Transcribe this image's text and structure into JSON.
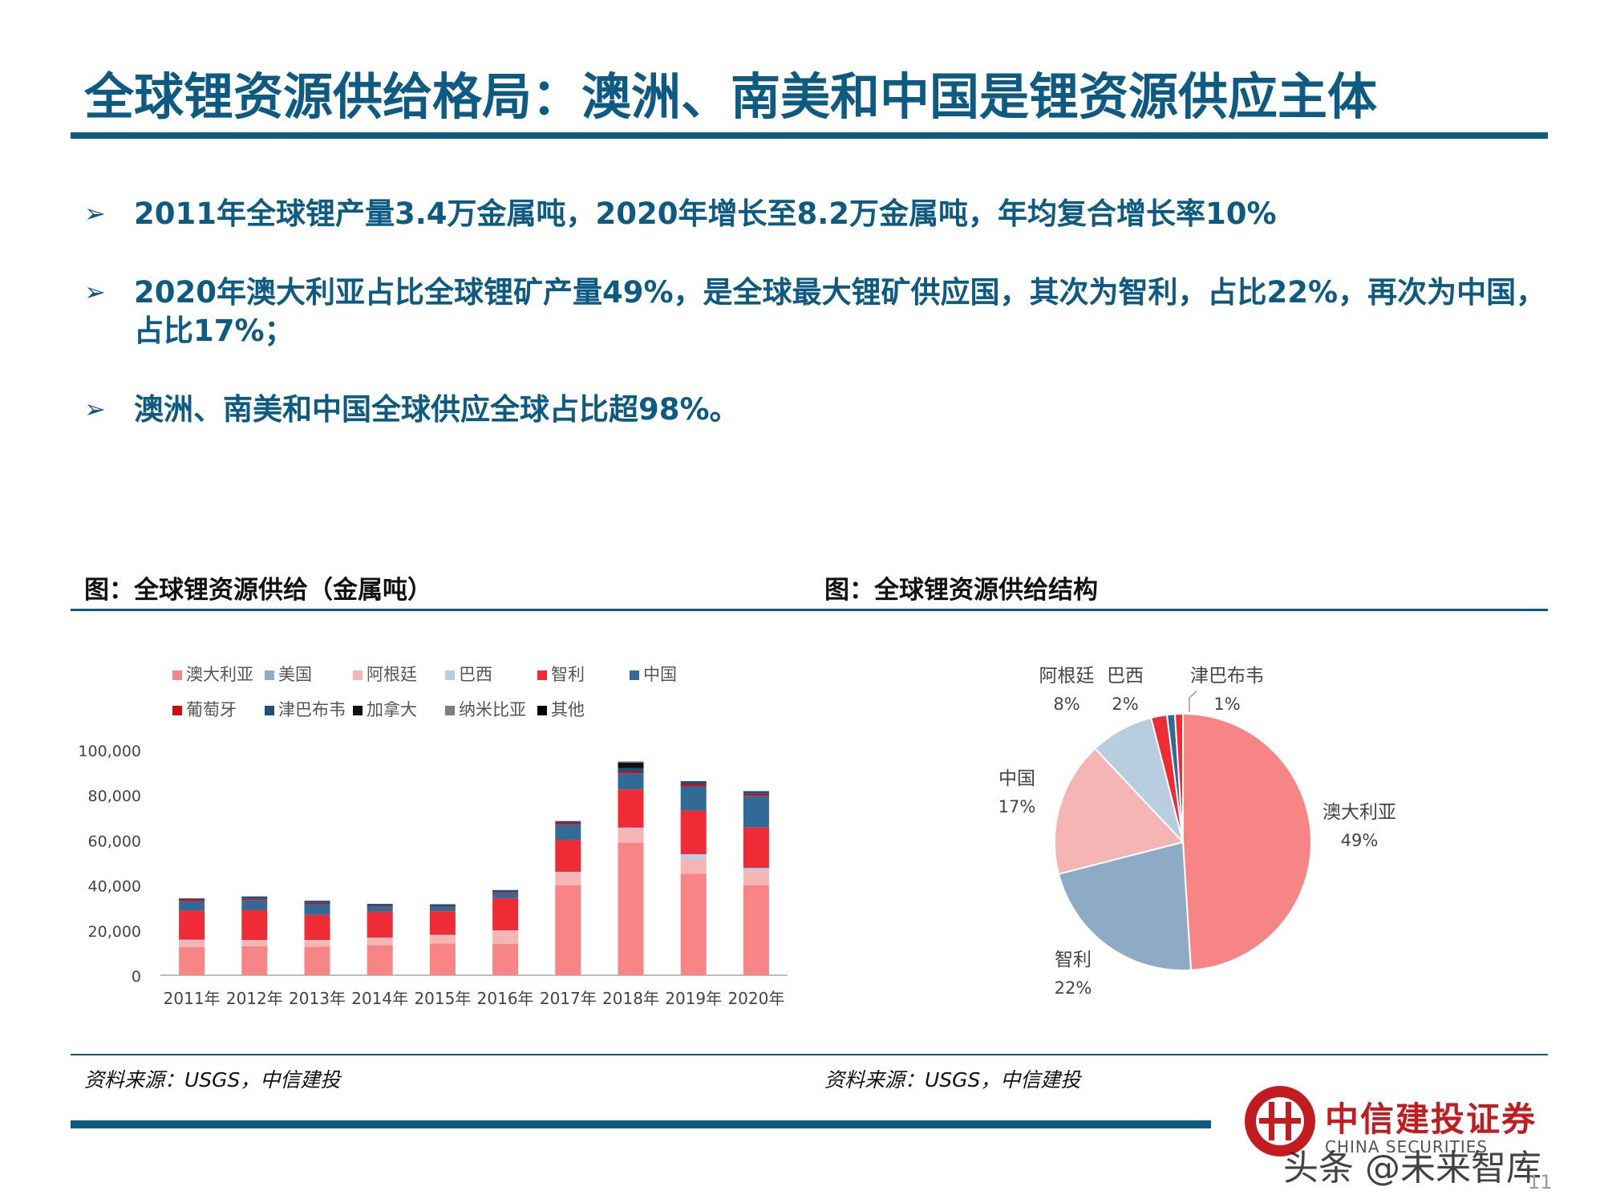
{
  "slide": {
    "title": "全球锂资源供给格局：澳洲、南美和中国是锂资源供应主体",
    "bullet_glyph": "➢",
    "bullets": [
      "2011年全球锂产量3.4万金属吨，2020年增长至8.2万金属吨，年均复合增长率10%",
      "2020年澳大利亚占比全球锂矿产量49%，是全球最大锂矿供应国，其次为智利，占比22%，再次为中国，占比17%；",
      "澳洲、南美和中国全球供应全球占比超98%。"
    ],
    "fig1_title": "图：全球锂资源供给（金属吨）",
    "fig2_title": "图：全球锂资源供给结构",
    "source1": "资料来源：USGS，中信建投",
    "source2": "资料来源：USGS，中信建投",
    "brand_name": "中信建投证券",
    "brand_en": "CHINA SECURITIES",
    "watermark": "头条 @未来智库",
    "page_number": "11"
  },
  "chart_data": [
    {
      "type": "bar",
      "stacked": true,
      "categories": [
        "2011年",
        "2012年",
        "2013年",
        "2014年",
        "2015年",
        "2016年",
        "2017年",
        "2018年",
        "2019年",
        "2020年"
      ],
      "ylim": [
        0,
        100000
      ],
      "yticks": [
        0,
        20000,
        40000,
        60000,
        80000,
        100000
      ],
      "ytick_labels": [
        "0",
        "20,000",
        "40,000",
        "60,000",
        "80,000",
        "100,000"
      ],
      "legend_position": "top",
      "grid": false,
      "series": [
        {
          "name": "澳大利亚",
          "color": "#f88585",
          "values": [
            12500,
            12800,
            12700,
            13300,
            14100,
            14000,
            40000,
            58800,
            45000,
            40000
          ]
        },
        {
          "name": "美国",
          "color": "#8eabc6",
          "values": [
            0,
            0,
            0,
            0,
            0,
            0,
            0,
            0,
            0,
            0
          ]
        },
        {
          "name": "阿根廷",
          "color": "#f6b5b5",
          "values": [
            2950,
            2700,
            2500,
            3200,
            3600,
            5700,
            5700,
            6400,
            6300,
            6200
          ]
        },
        {
          "name": "巴西",
          "color": "#b9cde0",
          "values": [
            320,
            150,
            400,
            160,
            200,
            200,
            200,
            300,
            2400,
            1400
          ]
        },
        {
          "name": "智利",
          "color": "#ef2b35",
          "values": [
            12900,
            13200,
            11200,
            11500,
            10500,
            14300,
            14100,
            17000,
            19300,
            18000
          ]
        },
        {
          "name": "中国",
          "color": "#316a96",
          "values": [
            4140,
            4500,
            4700,
            2300,
            2000,
            2300,
            6800,
            7100,
            10800,
            14000
          ]
        },
        {
          "name": "葡萄牙",
          "color": "#d20b12",
          "values": [
            820,
            560,
            570,
            300,
            200,
            400,
            800,
            800,
            900,
            900
          ]
        },
        {
          "name": "津巴布韦",
          "color": "#1e4f7a",
          "values": [
            470,
            1060,
            1000,
            900,
            900,
            900,
            800,
            1600,
            1200,
            1200
          ]
        },
        {
          "name": "加拿大",
          "color": "#111111",
          "values": [
            0,
            0,
            0,
            0,
            0,
            0,
            0,
            2400,
            200,
            0
          ]
        },
        {
          "name": "纳米比亚",
          "color": "#7f7f7f",
          "values": [
            0,
            0,
            0,
            0,
            0,
            0,
            0,
            500,
            0,
            0
          ]
        },
        {
          "name": "其他",
          "color": "#000000",
          "values": [
            0,
            0,
            0,
            0,
            0,
            0,
            0,
            0,
            0,
            0
          ]
        }
      ]
    },
    {
      "type": "pie",
      "slices": [
        {
          "label": "澳大利亚",
          "value": 49,
          "value_label": "49%",
          "color": "#f88585"
        },
        {
          "label": "智利",
          "value": 22,
          "value_label": "22%",
          "color": "#8eabc6"
        },
        {
          "label": "中国",
          "value": 17,
          "value_label": "17%",
          "color": "#f6b5b5"
        },
        {
          "label": "阿根廷",
          "value": 8,
          "value_label": "8%",
          "color": "#b9cde0"
        },
        {
          "label": "巴西",
          "value": 2,
          "value_label": "2%",
          "color": "#ef2b35"
        },
        {
          "label": "津巴布韦",
          "value": 1,
          "value_label": "1%",
          "color": "#316a96"
        },
        {
          "label": "",
          "value": 1,
          "value_label": "",
          "color": "#ef2b35"
        }
      ]
    }
  ]
}
